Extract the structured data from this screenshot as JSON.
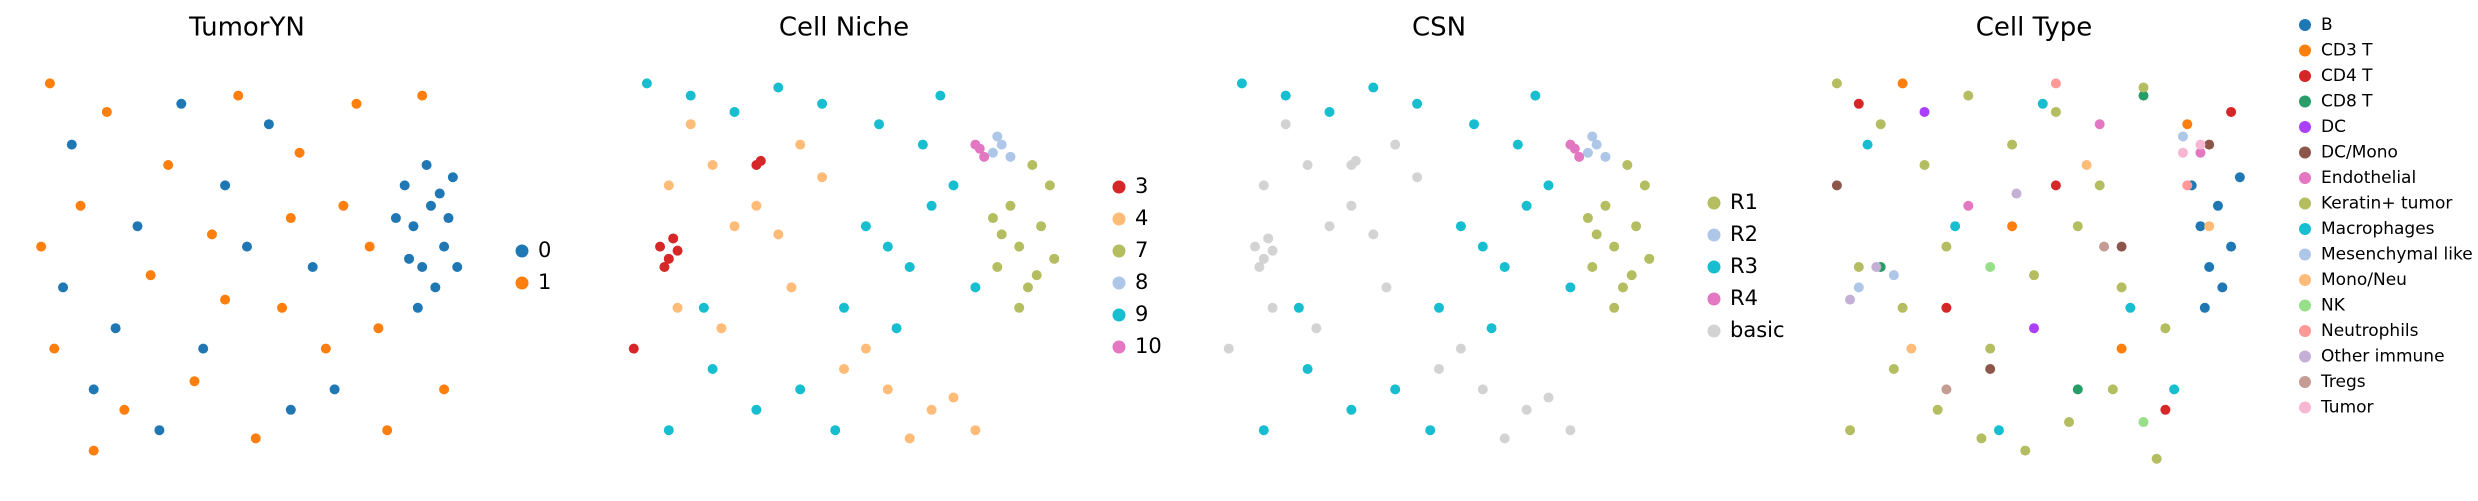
{
  "chart_data": [
    {
      "type": "scatter",
      "title": "TumorYN",
      "xlim": [
        0,
        100
      ],
      "ylim": [
        0,
        100
      ],
      "series": [
        {
          "name": "0",
          "color": "#1f77b4",
          "x": [
            88,
            92,
            95,
            90,
            86,
            97,
            93,
            89,
            84,
            96,
            91,
            87,
            98,
            94,
            10,
            25,
            40,
            55,
            15,
            65,
            30,
            70,
            50,
            8,
            45,
            60,
            35,
            20
          ],
          "values": [
            60,
            65,
            55,
            50,
            70,
            72,
            45,
            40,
            62,
            62,
            75,
            52,
            50,
            68,
            80,
            60,
            30,
            85,
            20,
            50,
            10,
            20,
            55,
            45,
            70,
            15,
            90,
            35
          ]
        },
        {
          "name": "1",
          "color": "#ff7f0e",
          "x": [
            5,
            18,
            32,
            48,
            62,
            75,
            12,
            28,
            42,
            58,
            72,
            80,
            6,
            22,
            38,
            52,
            68,
            82,
            95,
            90,
            3,
            45,
            78,
            60,
            15
          ],
          "values": [
            95,
            88,
            75,
            92,
            78,
            90,
            65,
            48,
            58,
            40,
            65,
            35,
            30,
            15,
            22,
            8,
            30,
            10,
            20,
            92,
            55,
            42,
            55,
            62,
            5
          ]
        }
      ]
    },
    {
      "type": "scatter",
      "title": "Cell Niche",
      "xlim": [
        0,
        100
      ],
      "ylim": [
        0,
        100
      ],
      "series": [
        {
          "name": "3",
          "color": "#d62728",
          "x": [
            8,
            10,
            12,
            9,
            11,
            30,
            31,
            2
          ],
          "values": [
            55,
            52,
            54,
            50,
            57,
            75,
            76,
            30
          ]
        },
        {
          "name": "4",
          "color": "#ffbb78",
          "x": [
            10,
            20,
            30,
            40,
            15,
            25,
            35,
            45,
            55,
            60,
            70,
            80,
            50,
            65,
            75,
            12,
            22,
            38
          ],
          "values": [
            70,
            75,
            65,
            80,
            85,
            60,
            58,
            72,
            30,
            20,
            15,
            10,
            25,
            8,
            18,
            40,
            35,
            45
          ]
        },
        {
          "name": "7",
          "color": "#b5bd61",
          "x": [
            85,
            90,
            95,
            88,
            92,
            97,
            86,
            94,
            90,
            98,
            84,
            93
          ],
          "values": [
            50,
            55,
            60,
            65,
            45,
            70,
            58,
            48,
            40,
            52,
            62,
            75
          ]
        },
        {
          "name": "8",
          "color": "#aec7e8",
          "x": [
            84,
            86,
            88,
            85
          ],
          "values": [
            78,
            80,
            77,
            82
          ]
        },
        {
          "name": "9",
          "color": "#17becf",
          "x": [
            5,
            15,
            25,
            35,
            45,
            55,
            60,
            65,
            70,
            75,
            80,
            50,
            40,
            30,
            20,
            10,
            58,
            68,
            72,
            62,
            48,
            18
          ],
          "values": [
            95,
            92,
            88,
            94,
            90,
            60,
            55,
            50,
            65,
            70,
            45,
            40,
            20,
            15,
            25,
            10,
            85,
            80,
            92,
            35,
            10,
            40
          ]
        },
        {
          "name": "10",
          "color": "#e377c2",
          "x": [
            81,
            82,
            80
          ],
          "values": [
            79,
            77,
            80
          ]
        }
      ]
    },
    {
      "type": "scatter",
      "title": "CSN",
      "xlim": [
        0,
        100
      ],
      "ylim": [
        0,
        100
      ],
      "series": [
        {
          "name": "R1",
          "color": "#b5bd61",
          "x": [
            85,
            90,
            95,
            88,
            92,
            97,
            86,
            94,
            90,
            98,
            84,
            93
          ],
          "values": [
            50,
            55,
            60,
            65,
            45,
            70,
            58,
            48,
            40,
            52,
            62,
            75
          ]
        },
        {
          "name": "R2",
          "color": "#aec7e8",
          "x": [
            84,
            86,
            88,
            85
          ],
          "values": [
            78,
            80,
            77,
            82
          ]
        },
        {
          "name": "R3",
          "color": "#17becf",
          "x": [
            5,
            15,
            25,
            35,
            45,
            55,
            60,
            65,
            70,
            75,
            80,
            50,
            40,
            30,
            20,
            10,
            58,
            68,
            72,
            62,
            48,
            18
          ],
          "values": [
            95,
            92,
            88,
            94,
            90,
            60,
            55,
            50,
            65,
            70,
            45,
            40,
            20,
            15,
            25,
            10,
            85,
            80,
            92,
            35,
            10,
            40
          ]
        },
        {
          "name": "R4",
          "color": "#e377c2",
          "x": [
            81,
            82,
            80
          ],
          "values": [
            79,
            77,
            80
          ]
        },
        {
          "name": "basic",
          "color": "#d3d3d3",
          "x": [
            10,
            20,
            30,
            40,
            15,
            25,
            35,
            45,
            55,
            60,
            70,
            80,
            50,
            65,
            75,
            12,
            22,
            38,
            8,
            10,
            12,
            9,
            11,
            30,
            31,
            2
          ],
          "values": [
            70,
            75,
            65,
            80,
            85,
            60,
            58,
            72,
            30,
            20,
            15,
            10,
            25,
            8,
            18,
            40,
            35,
            45,
            55,
            52,
            54,
            50,
            57,
            75,
            76,
            30
          ]
        }
      ]
    },
    {
      "type": "scatter",
      "title": "Cell Type",
      "xlim": [
        0,
        100
      ],
      "ylim": [
        0,
        100
      ],
      "legend": "top",
      "series": [
        {
          "name": "B",
          "color": "#1f77b4",
          "x": [
            88,
            92,
            95,
            90,
            86,
            97,
            93,
            89
          ],
          "values": [
            60,
            65,
            55,
            50,
            70,
            72,
            45,
            40
          ]
        },
        {
          "name": "CD3 T",
          "color": "#ff7f0e",
          "x": [
            20,
            45,
            70,
            85
          ],
          "values": [
            95,
            60,
            30,
            85
          ]
        },
        {
          "name": "CD4 T",
          "color": "#d62728",
          "x": [
            10,
            30,
            55,
            80,
            95
          ],
          "values": [
            90,
            40,
            70,
            15,
            88
          ]
        },
        {
          "name": "CD8 T",
          "color": "#279e68",
          "x": [
            15,
            60,
            75
          ],
          "values": [
            50,
            20,
            92
          ]
        },
        {
          "name": "DC",
          "color": "#aa40fc",
          "x": [
            25,
            50
          ],
          "values": [
            88,
            35
          ]
        },
        {
          "name": "DC/Mono",
          "color": "#8c564b",
          "x": [
            5,
            40,
            70,
            90
          ],
          "values": [
            70,
            25,
            55,
            80
          ]
        },
        {
          "name": "Endothelial",
          "color": "#e377c2",
          "x": [
            35,
            65,
            88
          ],
          "values": [
            65,
            85,
            78
          ]
        },
        {
          "name": "Keratin+ tumor",
          "color": "#b5bd61",
          "x": [
            5,
            15,
            25,
            35,
            45,
            55,
            65,
            75,
            10,
            20,
            30,
            40,
            50,
            60,
            70,
            80,
            8,
            28,
            48,
            68,
            18,
            38,
            58,
            78
          ],
          "values": [
            95,
            85,
            75,
            92,
            80,
            88,
            70,
            94,
            50,
            40,
            55,
            30,
            48,
            60,
            45,
            35,
            10,
            15,
            5,
            20,
            25,
            8,
            12,
            3
          ]
        },
        {
          "name": "Macrophages",
          "color": "#17becf",
          "x": [
            12,
            32,
            52,
            72,
            82,
            42
          ],
          "values": [
            80,
            60,
            90,
            40,
            20,
            10
          ]
        },
        {
          "name": "Mesenchymal like",
          "color": "#aec7e8",
          "x": [
            10,
            18,
            84
          ],
          "values": [
            45,
            48,
            82
          ]
        },
        {
          "name": "Mono/Neu",
          "color": "#ffbb78",
          "x": [
            22,
            62,
            90
          ],
          "values": [
            30,
            75,
            60
          ]
        },
        {
          "name": "NK",
          "color": "#98df8a",
          "x": [
            40,
            75
          ],
          "values": [
            50,
            12
          ]
        },
        {
          "name": "Neutrophils",
          "color": "#ff9896",
          "x": [
            55,
            85
          ],
          "values": [
            95,
            70
          ]
        },
        {
          "name": "Other immune",
          "color": "#c5b0d5",
          "x": [
            8,
            14,
            46
          ],
          "values": [
            42,
            50,
            68
          ]
        },
        {
          "name": "Tregs",
          "color": "#c49c94",
          "x": [
            30,
            66
          ],
          "values": [
            20,
            55
          ]
        },
        {
          "name": "Tumor",
          "color": "#f7b6d2",
          "x": [
            84,
            88
          ],
          "values": [
            78,
            80
          ]
        }
      ]
    }
  ]
}
